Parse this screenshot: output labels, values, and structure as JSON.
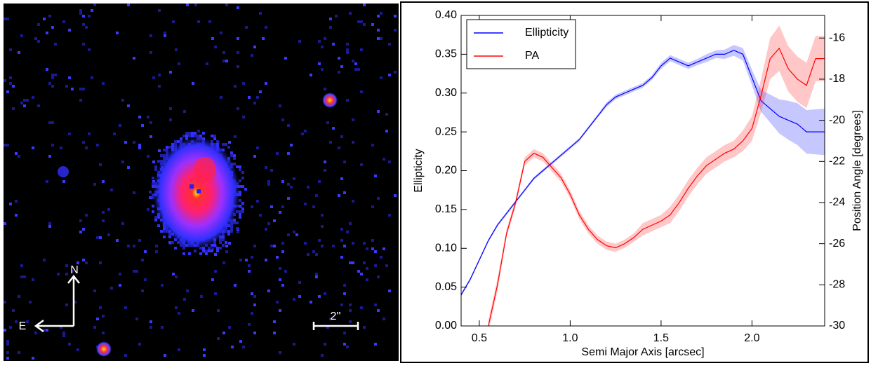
{
  "image_labels": {
    "north": "N",
    "east": "E",
    "scale": "2''"
  },
  "chart_data": {
    "type": "line",
    "xlabel": "Semi Major Axis [arcsec]",
    "ylabel": "Ellipticity",
    "y2label": "Position Angle [degrees]",
    "x": [
      0.4,
      0.45,
      0.5,
      0.55,
      0.6,
      0.65,
      0.7,
      0.75,
      0.8,
      0.85,
      0.9,
      0.95,
      1.0,
      1.05,
      1.1,
      1.15,
      1.2,
      1.25,
      1.3,
      1.35,
      1.4,
      1.45,
      1.5,
      1.55,
      1.6,
      1.65,
      1.7,
      1.75,
      1.8,
      1.85,
      1.9,
      1.95,
      2.0,
      2.05,
      2.1,
      2.15,
      2.2,
      2.25,
      2.3,
      2.35,
      2.4
    ],
    "series": [
      {
        "name": "Ellipticity",
        "color": "#0000ff",
        "axis": "y",
        "values": [
          0.04,
          0.06,
          0.085,
          0.11,
          0.13,
          0.145,
          0.16,
          0.175,
          0.19,
          0.2,
          0.21,
          0.22,
          0.23,
          0.24,
          0.255,
          0.27,
          0.285,
          0.295,
          0.3,
          0.305,
          0.31,
          0.32,
          0.335,
          0.345,
          0.34,
          0.335,
          0.34,
          0.345,
          0.35,
          0.35,
          0.355,
          0.35,
          0.32,
          0.29,
          0.28,
          0.27,
          0.265,
          0.26,
          0.25,
          0.25,
          0.25
        ],
        "errors": [
          0.002,
          0.002,
          0.002,
          0.002,
          0.002,
          0.002,
          0.002,
          0.002,
          0.002,
          0.002,
          0.002,
          0.002,
          0.002,
          0.002,
          0.002,
          0.002,
          0.003,
          0.003,
          0.003,
          0.003,
          0.003,
          0.003,
          0.004,
          0.004,
          0.004,
          0.004,
          0.004,
          0.005,
          0.005,
          0.006,
          0.007,
          0.008,
          0.01,
          0.014,
          0.018,
          0.022,
          0.025,
          0.027,
          0.028,
          0.029,
          0.03
        ]
      },
      {
        "name": "PA",
        "color": "#ff0000",
        "axis": "y2",
        "values": [
          null,
          null,
          null,
          -30,
          -28,
          -25.5,
          -24,
          -22,
          -21.6,
          -21.8,
          -22.3,
          -22.8,
          -23.6,
          -24.6,
          -25.3,
          -25.8,
          -26.1,
          -26.2,
          -26,
          -25.7,
          -25.3,
          -25.1,
          -24.9,
          -24.6,
          -24,
          -23.3,
          -22.7,
          -22.2,
          -21.9,
          -21.6,
          -21.4,
          -21,
          -20.4,
          -18.8,
          -17,
          -16.5,
          -17.5,
          -18,
          -18.3,
          -17,
          -17
        ],
        "errors": [
          null,
          null,
          null,
          0.3,
          0.3,
          0.2,
          0.2,
          0.2,
          0.2,
          0.2,
          0.2,
          0.2,
          0.2,
          0.2,
          0.2,
          0.2,
          0.2,
          0.2,
          0.2,
          0.2,
          0.3,
          0.3,
          0.3,
          0.4,
          0.4,
          0.4,
          0.4,
          0.4,
          0.4,
          0.4,
          0.4,
          0.5,
          0.6,
          0.8,
          1.0,
          1.1,
          1.1,
          1.1,
          1.1,
          1.1,
          1.1
        ]
      }
    ],
    "xlim": [
      0.4,
      2.4
    ],
    "xticks": [
      0.5,
      {
        "value": 1,
        "label": "1.0"
      },
      1.5,
      {
        "value": 2,
        "label": "2.0"
      }
    ],
    "ylim": [
      0,
      0.4
    ],
    "yticks": [
      {
        "value": 0,
        "label": "0.00"
      },
      0.05,
      {
        "value": 0.1,
        "label": "0.10"
      },
      0.15,
      {
        "value": 0.2,
        "label": "0.20"
      },
      0.25,
      {
        "value": 0.3,
        "label": "0.30"
      },
      0.35,
      {
        "value": 0.4,
        "label": "0.40"
      }
    ],
    "y2lim": [
      -30,
      -14.9
    ],
    "y2ticks": [
      -30,
      -28,
      -26,
      -24,
      -22,
      -20,
      -18,
      -16
    ],
    "legend": "upper left"
  }
}
